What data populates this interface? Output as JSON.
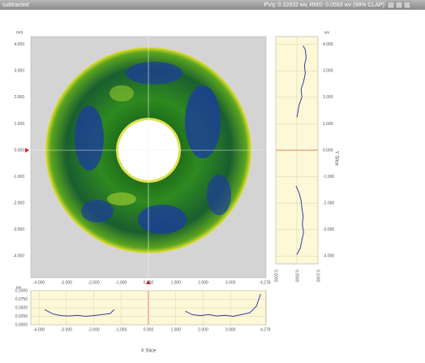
{
  "header": {
    "title": "subtracted",
    "stats": "PVq: 0.32832 wv, RMS: 0.0593 wv (98% CLAP)"
  },
  "main_plot": {
    "unit": "mm",
    "xlim": [
      -4.3,
      4.3
    ],
    "ylim": [
      -4.3,
      4.3
    ],
    "xticks": [
      {
        "value": -4,
        "label": "-4.000"
      },
      {
        "value": -3,
        "label": "-3.000"
      },
      {
        "value": -2,
        "label": "-2.000"
      },
      {
        "value": -1,
        "label": "-1.000"
      },
      {
        "value": 0,
        "label": "0.000"
      },
      {
        "value": 1,
        "label": "1.000"
      },
      {
        "value": 2,
        "label": "2.000"
      },
      {
        "value": 3,
        "label": "3.000"
      },
      {
        "value": 4.278,
        "label": "4.278"
      }
    ],
    "yticks": [
      {
        "value": 4,
        "label": "4.000"
      },
      {
        "value": 3,
        "label": "3.000"
      },
      {
        "value": 2,
        "label": "2.000"
      },
      {
        "value": 1,
        "label": "1.000"
      },
      {
        "value": 0,
        "label": "0.000"
      },
      {
        "value": -1,
        "label": "-1.000"
      },
      {
        "value": -2,
        "label": "-2.000"
      },
      {
        "value": -3,
        "label": "-3.000"
      },
      {
        "value": -4,
        "label": "-4.000"
      }
    ]
  },
  "y_slice": {
    "title": "Y Slice",
    "unit": "wv",
    "vlim": [
      0,
      0.1
    ],
    "vticks": [
      {
        "value": 0,
        "label": "0.0000"
      },
      {
        "value": 0.05,
        "label": "0.0500"
      },
      {
        "value": 0.1,
        "label": "0.1000"
      }
    ],
    "y": [
      3.95,
      3.8,
      3.5,
      3.2,
      2.9,
      2.6,
      2.3,
      2.0,
      1.7,
      1.4,
      1.25,
      -1.2,
      -1.35,
      -1.6,
      -1.9,
      -2.2,
      -2.5,
      -2.8,
      -3.1,
      -3.4,
      -3.7,
      -3.95
    ],
    "values": [
      0.065,
      0.07,
      0.072,
      0.068,
      0.07,
      0.066,
      0.06,
      0.062,
      0.055,
      0.052,
      0.05,
      null,
      0.048,
      0.055,
      0.06,
      0.062,
      0.065,
      0.063,
      0.066,
      0.062,
      0.058,
      0.05
    ]
  },
  "x_slice": {
    "title": "X Slice",
    "unit": "wv",
    "vlim": [
      0,
      0.1
    ],
    "vticks": [
      {
        "value": 0.1,
        "label": "0.1000"
      },
      {
        "value": 0.075,
        "label": "0.0750"
      },
      {
        "value": 0.05,
        "label": "0.0500"
      },
      {
        "value": 0.025,
        "label": "0.0250"
      },
      {
        "value": 0,
        "label": "0.0000"
      }
    ],
    "x": [
      -3.8,
      -3.5,
      -3.2,
      -2.9,
      -2.6,
      -2.3,
      -2.0,
      -1.7,
      -1.4,
      -1.25,
      1.2,
      1.35,
      1.6,
      1.9,
      2.2,
      2.5,
      2.8,
      3.1,
      3.4,
      3.7,
      3.95,
      4.1
    ],
    "values": [
      0.045,
      0.032,
      0.027,
      0.026,
      0.028,
      0.025,
      0.027,
      0.03,
      0.033,
      0.045,
      null,
      0.04,
      0.03,
      0.027,
      0.03,
      0.026,
      0.028,
      0.025,
      0.03,
      0.035,
      0.055,
      0.09
    ]
  }
}
